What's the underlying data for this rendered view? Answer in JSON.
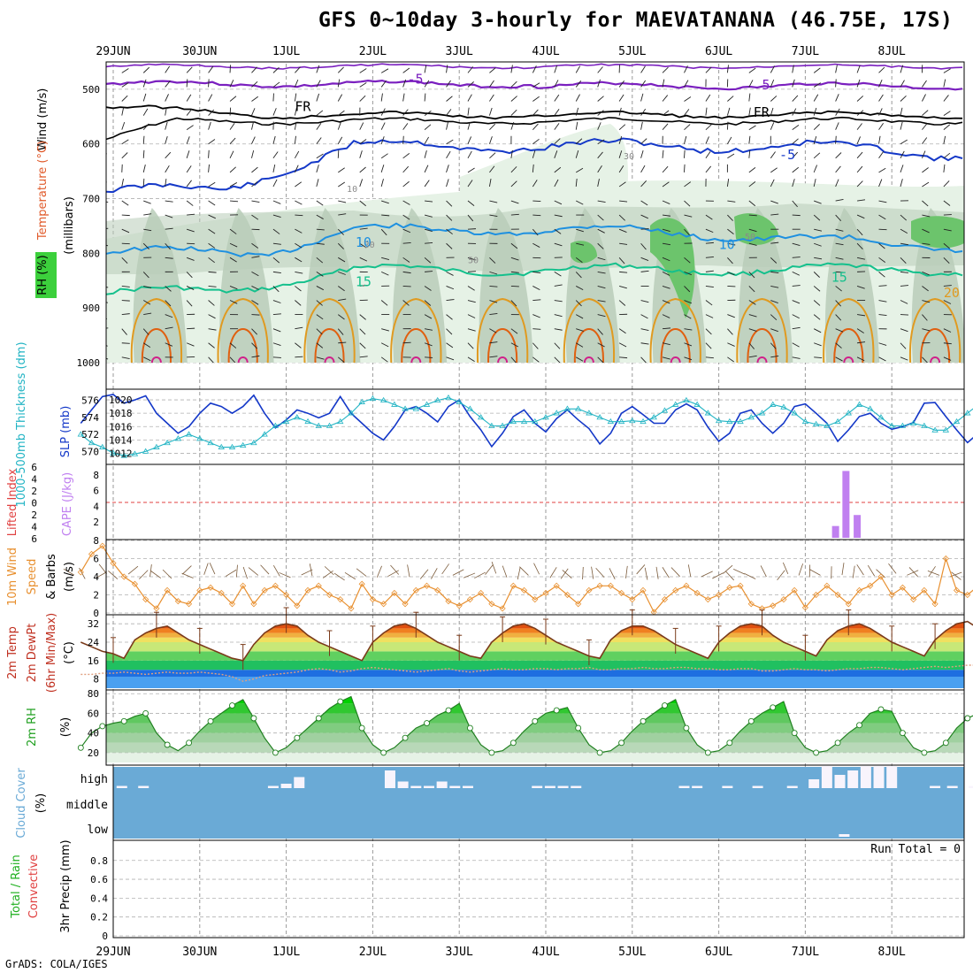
{
  "header": {
    "title": "GFS 0~10day 3-hourly for MAEVATANANA (46.75E, 17S)"
  },
  "footer": {
    "credit": "GrADS: COLA/IGES"
  },
  "colors": {
    "purple": "#7a1fbf",
    "black": "#000000",
    "blue": "#1438c8",
    "lightblue": "#1e90e0",
    "teal": "#14c08c",
    "orange": "#e09a20",
    "darkorange": "#e06010",
    "magenta": "#d0208a",
    "rh_light": "#e6f2e6",
    "rh_mid": "#b8ccb8",
    "rh_green": "#6cc46c",
    "cyan": "#22b4c4",
    "cape": "#c080f0",
    "wind10": "#e89030",
    "cloud": "#6aaad6"
  },
  "chart_data": [
    {
      "panel": "upper-air",
      "type": "contour",
      "ylabel_parts": [
        "Wind (m/s)",
        "Temperature (°C)",
        "RH (%)",
        "(millibars)"
      ],
      "dates": [
        "29JUN",
        "30JUN",
        "1JUL",
        "2JUL",
        "3JUL",
        "4JUL",
        "5JUL",
        "6JUL",
        "7JUL",
        "8JUL"
      ],
      "yticks": [
        500,
        600,
        700,
        800,
        900,
        1000
      ],
      "ylim": [
        450,
        1000
      ],
      "contour_labels": [
        {
          "text": "-5",
          "t": 3.4,
          "p": 490,
          "color": "purple"
        },
        {
          "text": "5",
          "t": 7.5,
          "p": 500,
          "color": "purple"
        },
        {
          "text": "FR",
          "t": 2.1,
          "p": 540,
          "color": "black"
        },
        {
          "text": "FR",
          "t": 7.4,
          "p": 550,
          "color": "black"
        },
        {
          "text": "-5",
          "t": 7.7,
          "p": 628,
          "color": "blue"
        },
        {
          "text": "10",
          "t": 2.8,
          "p": 788,
          "color": "lightblue"
        },
        {
          "text": "10",
          "t": 7.0,
          "p": 792,
          "color": "lightblue"
        },
        {
          "text": "15",
          "t": 2.8,
          "p": 860,
          "color": "teal"
        },
        {
          "text": "15",
          "t": 8.3,
          "p": 852,
          "color": "teal"
        },
        {
          "text": "20",
          "t": 9.6,
          "p": 880,
          "color": "orange"
        },
        {
          "text": "30",
          "t": 5.9,
          "p": 628,
          "color": "grey"
        },
        {
          "text": "10",
          "t": 2.7,
          "p": 688,
          "color": "grey"
        },
        {
          "text": "50",
          "t": 4.1,
          "p": 818,
          "color": "grey"
        },
        {
          "text": "30",
          "t": 2.9,
          "p": 790,
          "color": "grey"
        },
        {
          "text": "50",
          "t": 7.3,
          "p": 775,
          "color": "grey"
        }
      ]
    },
    {
      "panel": "slp-thickness",
      "type": "line",
      "ylabel_left": "1000-500mb Thickness (dm)",
      "ylabel_right": "SLP (mb)",
      "yticks_left": [
        570,
        572,
        574,
        576
      ],
      "yticks_right": [
        1012,
        1014,
        1016,
        1018,
        1020
      ],
      "series": [
        {
          "name": "SLP (mb)",
          "color": "blue",
          "axis": "right",
          "values": [
            1016.5,
            1018.5,
            1020.5,
            1020.8,
            1019.5,
            1020,
            1020.6,
            1018,
            1016.5,
            1015,
            1016,
            1018,
            1019.5,
            1019,
            1018,
            1019,
            1020.7,
            1018,
            1015.8,
            1017,
            1018.5,
            1018,
            1017.3,
            1018,
            1020.5,
            1018,
            1016.5,
            1015,
            1014,
            1016,
            1018.5,
            1019,
            1018,
            1016.7,
            1019,
            1020,
            1017.5,
            1015.5,
            1013,
            1015,
            1017.5,
            1018.5,
            1016.5,
            1015.2,
            1017.2,
            1018.5,
            1017,
            1015.7,
            1013.4,
            1015,
            1018,
            1019,
            1017.8,
            1016.5,
            1016.5,
            1018.5,
            1019.4,
            1018.5,
            1015.9,
            1013.8,
            1015,
            1018,
            1018.5,
            1016.5,
            1015,
            1016.5,
            1019,
            1019.4,
            1018,
            1016.5,
            1013.8,
            1015.5,
            1017.5,
            1018,
            1016.5,
            1015.6,
            1016,
            1016.6,
            1019.5,
            1019.6,
            1017.5,
            1015.5,
            1013.6,
            1015,
            1016.5,
            1017.5,
            1016,
            1016.8
          ]
        },
        {
          "name": "1000-500mb Thickness (dm)",
          "color": "cyan",
          "axis": "left",
          "values": [
            572,
            571,
            570.5,
            569.8,
            569.5,
            569.7,
            570,
            570.5,
            571,
            571.5,
            572,
            571.5,
            571,
            570.5,
            570.5,
            570.7,
            571,
            572,
            573,
            573.5,
            574,
            573.5,
            573,
            573,
            573.5,
            574.5,
            575.8,
            576.2,
            576,
            575.5,
            575,
            575,
            575.5,
            576,
            576.3,
            575.8,
            575,
            574,
            573,
            573,
            573.5,
            573.5,
            573.5,
            574,
            574.5,
            575,
            575,
            574.5,
            574,
            573.5,
            573.5,
            573.6,
            573.5,
            574,
            574.8,
            575.5,
            576,
            575.5,
            574.5,
            573.6,
            573.5,
            573.5,
            574,
            574.5,
            575.5,
            575.2,
            574.5,
            573.5,
            573.2,
            573,
            573.5,
            574.5,
            575.5,
            575,
            574,
            573,
            573,
            573.3,
            573,
            572.5,
            572.5,
            573.5,
            574.5,
            575.5,
            575,
            574,
            573,
            572.5,
            572.3,
            573
          ]
        }
      ]
    },
    {
      "panel": "cape-li",
      "type": "bar",
      "ylabel_left": "Lifted Index",
      "ylabel_right": "CAPE (J/kg)",
      "yticks_left": [
        "6",
        "4",
        "2",
        "0",
        "2",
        "4",
        "6"
      ],
      "yticks_right": [
        2,
        4,
        6,
        8
      ],
      "series": [
        {
          "name": "CAPE (J/kg)",
          "color": "cape",
          "bars": [
            {
              "t": 8.35,
              "value": 1.5
            },
            {
              "t": 8.47,
              "value": 8.5
            },
            {
              "t": 8.6,
              "value": 2.9
            }
          ]
        }
      ]
    },
    {
      "panel": "wind10m",
      "type": "line",
      "ylabel": "10m Wind Speed & Barbs (m/s)",
      "yticks": [
        0,
        2,
        4,
        6,
        8
      ],
      "ylim": [
        0,
        8
      ],
      "series": [
        {
          "name": "10m Wind Speed",
          "color": "wind10",
          "values": [
            4.5,
            6.5,
            7.4,
            5.5,
            4,
            3.2,
            1.5,
            0.5,
            2.5,
            1.3,
            1,
            2.5,
            2.8,
            2.2,
            1,
            3,
            1,
            2.5,
            3,
            2,
            0.8,
            2.5,
            3,
            2,
            1.5,
            0.5,
            3.2,
            1.5,
            1,
            2.2,
            1,
            2.5,
            3,
            2.5,
            1.3,
            0.8,
            1.5,
            2.2,
            1,
            0.5,
            3,
            2.5,
            1.5,
            2.2,
            3,
            2,
            1,
            2.5,
            3,
            3,
            2.2,
            1.5,
            2.5,
            0.1,
            1.5,
            2.5,
            3,
            2.2,
            1.5,
            2,
            2.8,
            3,
            1,
            0.5,
            0.8,
            1.5,
            2.5,
            0.6,
            2,
            3,
            2,
            1,
            2.5,
            3,
            4,
            2,
            2.8,
            1.5,
            2.5,
            1,
            6,
            2.5,
            2,
            3,
            2.5,
            1,
            2,
            3
          ]
        }
      ]
    },
    {
      "panel": "temp-dewpt",
      "type": "area",
      "ylabel": "2m Temp 2m DewPt (6hr Min/Max) (°C)",
      "yticks": [
        8,
        16,
        24,
        32
      ],
      "ylim": [
        4,
        34
      ],
      "series": [
        {
          "name": "2m Temp",
          "color": "#7a3a1a",
          "values": [
            24,
            22,
            20,
            19,
            17,
            25,
            28,
            30,
            31,
            28,
            25,
            23,
            21,
            19,
            17,
            16,
            23,
            28,
            31,
            32,
            31,
            27,
            24,
            22,
            20,
            18,
            16,
            24,
            28,
            31,
            32,
            30,
            27,
            24,
            22,
            20,
            18,
            17,
            24,
            28,
            31,
            32,
            30,
            27,
            24,
            22,
            20,
            18,
            17,
            25,
            29,
            31,
            31,
            29,
            26,
            23,
            21,
            19,
            17,
            24,
            28,
            31,
            32,
            31,
            27,
            24,
            22,
            20,
            18,
            25,
            29,
            31,
            32,
            30,
            27,
            24,
            22,
            20,
            18,
            25,
            29,
            32,
            33,
            30,
            27,
            24,
            21,
            19,
            18,
            26
          ]
        },
        {
          "name": "2m DewPt",
          "color": "#e0a080",
          "values": [
            10,
            10,
            10.5,
            10.5,
            11,
            10.5,
            10,
            10.5,
            11,
            10.5,
            10.5,
            11,
            10.5,
            10,
            9,
            7,
            8,
            9.5,
            10,
            10.5,
            11,
            12,
            12.5,
            12,
            11,
            11.5,
            12.5,
            13,
            12.5,
            12,
            11.5,
            11,
            11.5,
            12,
            12.5,
            11.5,
            11,
            11.5,
            12,
            12.5,
            12,
            12,
            12.5,
            12.5,
            12,
            12.5,
            12.5,
            13,
            12,
            12,
            12.5,
            12.5,
            13,
            12.5,
            12.5,
            13,
            13,
            12.5,
            12.5,
            12,
            12,
            12.5,
            12.5,
            11.5,
            11.5,
            12,
            12.5,
            12,
            12,
            11.5,
            12,
            12.5,
            12.5,
            13,
            13,
            12.5,
            12,
            12.5,
            13,
            13.5,
            13,
            13.5,
            14,
            14,
            14,
            14.5,
            14,
            14.5,
            14.5
          ]
        }
      ]
    },
    {
      "panel": "rh2m",
      "type": "area",
      "ylabel": "2m RH (%)",
      "yticks": [
        20,
        40,
        60,
        80
      ],
      "ylim": [
        10,
        82
      ],
      "series": [
        {
          "name": "2m RH",
          "color": "#20c020",
          "values": [
            25,
            40,
            47,
            50,
            52,
            57,
            60,
            40,
            28,
            22,
            30,
            42,
            52,
            60,
            68,
            74,
            55,
            35,
            20,
            25,
            35,
            45,
            55,
            65,
            72,
            77,
            45,
            28,
            20,
            25,
            35,
            45,
            50,
            58,
            63,
            70,
            45,
            28,
            20,
            22,
            30,
            42,
            52,
            60,
            63,
            66,
            45,
            28,
            20,
            22,
            30,
            42,
            52,
            60,
            68,
            74,
            45,
            28,
            20,
            22,
            30,
            42,
            52,
            60,
            66,
            72,
            40,
            25,
            20,
            22,
            30,
            40,
            48,
            60,
            64,
            62,
            40,
            25,
            20,
            22,
            30,
            45,
            55,
            60,
            68,
            76,
            72,
            45
          ]
        }
      ]
    },
    {
      "panel": "cloud",
      "type": "bar",
      "ylabel": "Cloud Cover (%)",
      "levels": [
        "high",
        "middle",
        "low"
      ],
      "series": [
        {
          "name": "high cloud",
          "color": "white",
          "bars": [
            {
              "t": 0.1,
              "v": 0.1
            },
            {
              "t": 0.35,
              "v": 0.1
            },
            {
              "t": 1.85,
              "v": 0.1
            },
            {
              "t": 2.0,
              "v": 0.2
            },
            {
              "t": 2.15,
              "v": 0.5
            },
            {
              "t": 3.2,
              "v": 0.8
            },
            {
              "t": 3.35,
              "v": 0.3
            },
            {
              "t": 3.5,
              "v": 0.1
            },
            {
              "t": 3.65,
              "v": 0.1
            },
            {
              "t": 3.8,
              "v": 0.3
            },
            {
              "t": 3.95,
              "v": 0.1
            },
            {
              "t": 4.1,
              "v": 0.1
            },
            {
              "t": 4.9,
              "v": 0.1
            },
            {
              "t": 5.05,
              "v": 0.1
            },
            {
              "t": 5.2,
              "v": 0.1
            },
            {
              "t": 5.35,
              "v": 0.1
            },
            {
              "t": 6.6,
              "v": 0.1
            },
            {
              "t": 6.75,
              "v": 0.1
            },
            {
              "t": 7.1,
              "v": 0.1
            },
            {
              "t": 7.45,
              "v": 0.1
            },
            {
              "t": 7.85,
              "v": 0.1
            },
            {
              "t": 8.1,
              "v": 0.4
            },
            {
              "t": 8.25,
              "v": 1.0
            },
            {
              "t": 8.4,
              "v": 0.6
            },
            {
              "t": 8.55,
              "v": 0.8
            },
            {
              "t": 8.7,
              "v": 1.0
            },
            {
              "t": 8.85,
              "v": 1.0
            },
            {
              "t": 9.0,
              "v": 1.0
            },
            {
              "t": 9.5,
              "v": 0.1
            },
            {
              "t": 9.7,
              "v": 0.1
            },
            {
              "t": 9.95,
              "v": 0.1
            },
            {
              "t": 10.1,
              "v": 0.1
            }
          ]
        }
      ]
    },
    {
      "panel": "precip",
      "type": "bar",
      "ylabel_parts": [
        "Total / Rain",
        "Convective",
        "3hr Precip (mm)"
      ],
      "yticks": [
        0,
        0.2,
        0.4,
        0.6,
        0.8
      ],
      "ylim": [
        0,
        0.92
      ],
      "annotation": "Run Total = 0",
      "series": []
    }
  ]
}
